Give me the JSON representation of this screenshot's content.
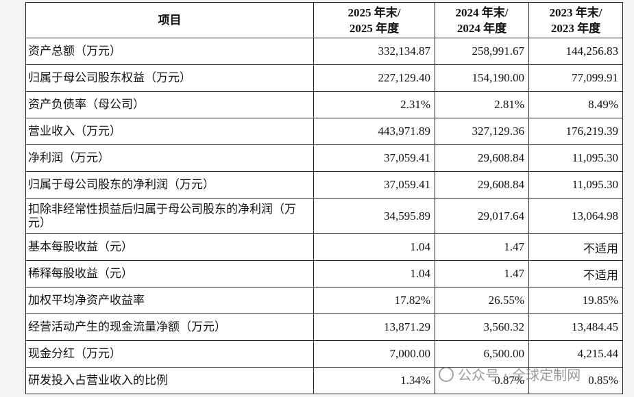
{
  "table": {
    "header": [
      [
        "项目"
      ],
      [
        "2025 年末/",
        "2025 年度"
      ],
      [
        "2024 年末/",
        "2024 年度"
      ],
      [
        "2023 年末/",
        "2023 年度"
      ]
    ],
    "rows": [
      [
        "资产总额（万元）",
        "332,134.87",
        "258,991.67",
        "144,256.83"
      ],
      [
        "归属于母公司股东权益（万元）",
        "227,129.40",
        "154,190.00",
        "77,099.91"
      ],
      [
        "资产负债率（母公司）",
        "2.31%",
        "2.81%",
        "8.49%"
      ],
      [
        "营业收入（万元）",
        "443,971.89",
        "327,129.36",
        "176,219.39"
      ],
      [
        "净利润（万元）",
        "37,059.41",
        "29,608.84",
        "11,095.30"
      ],
      [
        "归属于母公司股东的净利润（万元）",
        "37,059.41",
        "29,608.84",
        "11,095.30"
      ],
      [
        "扣除非经常性损益后归属于母公司股东的净利润（万元）",
        "34,595.89",
        "29,017.64",
        "13,064.98"
      ],
      [
        "基本每股收益（元）",
        "1.04",
        "1.47",
        "不适用"
      ],
      [
        "稀释每股收益（元）",
        "1.04",
        "1.47",
        "不适用"
      ],
      [
        "加权平均净资产收益率",
        "17.82%",
        "26.55%",
        "19.85%"
      ],
      [
        "经营活动产生的现金流量净额（万元）",
        "13,871.29",
        "3,560.32",
        "13,484.45"
      ],
      [
        "现金分红（万元）",
        "7,000.00",
        "6,500.00",
        "4,215.44"
      ],
      [
        "研发投入占营业收入的比例",
        "1.34%",
        "0.87%",
        "0.85%"
      ]
    ]
  },
  "watermark": "公众号 · 全球定制网"
}
